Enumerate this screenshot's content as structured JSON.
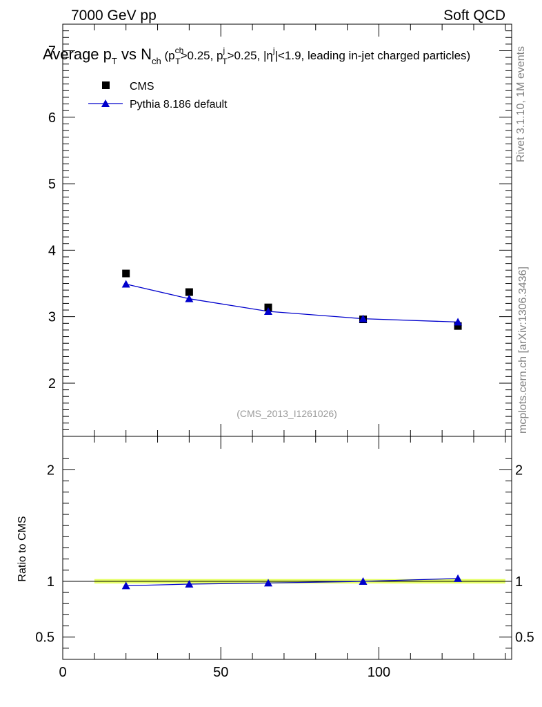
{
  "header": {
    "left": "7000 GeV pp",
    "right": "Soft QCD"
  },
  "title": {
    "main_a": "Average p",
    "main_a_sub": "T",
    "main_b": " vs N",
    "main_b_sub": "ch",
    "cond_open": " (p",
    "cond_1_sup": "ch",
    "cond_1_sub": "T",
    "cond_2": ">0.25, p",
    "cond_2_sup": "j",
    "cond_2_sub": "T",
    "cond_3": ">0.25, |η",
    "cond_3_sup": "j",
    "cond_4": "|<1.9, leading in-jet charged particles)"
  },
  "side_labels": {
    "rivet": "Rivet 3.1.10,  1M events",
    "mcplots": "mcplots.cern.ch [arXiv:1306.3436]"
  },
  "watermark": "(CMS_2013_I1261026)",
  "colors": {
    "mc": "#0000cc",
    "data": "#000000",
    "band": "#e6ff66"
  },
  "chart_data": [
    {
      "type": "scatter",
      "panel": "main",
      "xlim": [
        0,
        142
      ],
      "ylim": [
        1.2,
        7.4
      ],
      "yticks": [
        2,
        3,
        4,
        5,
        6,
        7
      ],
      "ytick_labels": [
        "2",
        "3",
        "4",
        "5",
        "6",
        "7"
      ],
      "legend_position": "top-left",
      "series": [
        {
          "name": "CMS",
          "marker": "square",
          "x": [
            20,
            40,
            65,
            95,
            125
          ],
          "y": [
            3.65,
            3.37,
            3.14,
            2.96,
            2.86
          ]
        },
        {
          "name": "Pythia 8.186 default",
          "marker": "triangle",
          "x": [
            20,
            40,
            65,
            95,
            125
          ],
          "y": [
            3.49,
            3.27,
            3.08,
            2.97,
            2.92
          ]
        }
      ]
    },
    {
      "type": "line",
      "panel": "ratio",
      "ylabel": "Ratio to CMS",
      "xlim": [
        0,
        142
      ],
      "ylim": [
        0.3,
        2.3
      ],
      "yticks": [
        0.5,
        1,
        2
      ],
      "ytick_labels": [
        "0.5",
        "1",
        "2"
      ],
      "xticks": [
        0,
        50,
        100
      ],
      "xtick_labels": [
        "0",
        "50",
        "100"
      ],
      "band": {
        "x": [
          10,
          140
        ],
        "y": [
          0.98,
          1.02
        ]
      },
      "series": [
        {
          "name": "Pythia 8.186 default",
          "x": [
            20,
            40,
            65,
            95,
            125
          ],
          "y": [
            0.96,
            0.975,
            0.985,
            1.0,
            1.025
          ]
        }
      ]
    }
  ]
}
